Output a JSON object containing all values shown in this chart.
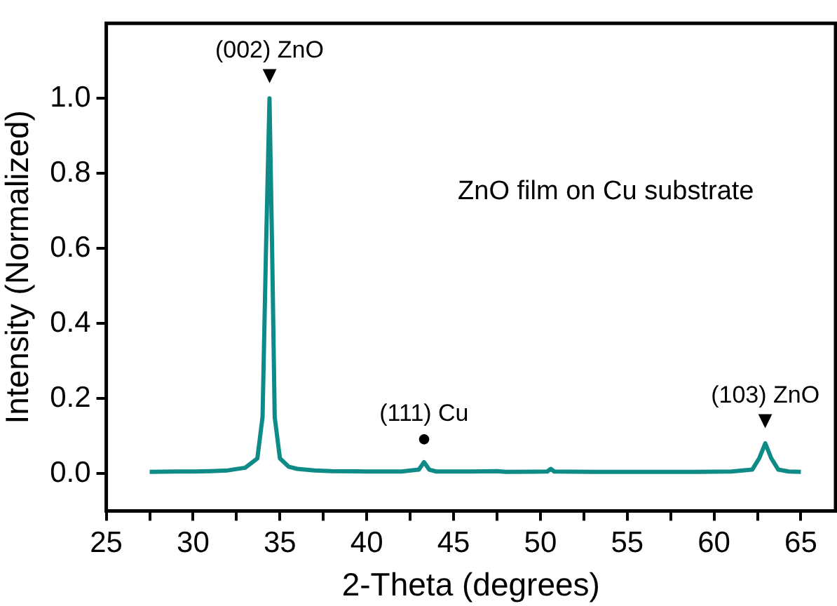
{
  "chart_data": {
    "type": "line",
    "xlabel": "2-Theta (degrees)",
    "ylabel": "Intensity (Normalized)",
    "color": "#0e8a87",
    "marker": "none",
    "x": [
      27.5,
      29,
      30,
      31,
      32,
      33,
      33.7,
      34.0,
      34.2,
      34.4,
      34.55,
      34.7,
      35.0,
      35.5,
      36,
      37,
      38,
      40,
      42,
      43.0,
      43.3,
      43.6,
      44,
      46,
      47.5,
      48,
      50.4,
      50.6,
      50.8,
      53,
      56,
      59,
      61,
      62.2,
      62.6,
      62.95,
      63.3,
      63.7,
      64.3,
      65
    ],
    "values": [
      0.004,
      0.005,
      0.005,
      0.006,
      0.008,
      0.015,
      0.04,
      0.15,
      0.6,
      1.0,
      0.6,
      0.15,
      0.04,
      0.018,
      0.012,
      0.008,
      0.006,
      0.005,
      0.005,
      0.01,
      0.03,
      0.01,
      0.005,
      0.005,
      0.006,
      0.004,
      0.005,
      0.012,
      0.005,
      0.004,
      0.004,
      0.004,
      0.005,
      0.01,
      0.04,
      0.08,
      0.04,
      0.01,
      0.005,
      0.004
    ],
    "xlim": [
      25,
      67
    ],
    "ylim": [
      -0.1,
      1.2
    ],
    "xticks": [
      25,
      {
        "value": 27.5,
        "label": null
      },
      30,
      {
        "value": 32.5,
        "label": null
      },
      35,
      {
        "value": 37.5,
        "label": null
      },
      40,
      {
        "value": 42.5,
        "label": null
      },
      45,
      {
        "value": 47.5,
        "label": null
      },
      50,
      {
        "value": 52.5,
        "label": null
      },
      55,
      {
        "value": 57.5,
        "label": null
      },
      60,
      {
        "value": 62.5,
        "label": null
      },
      65
    ],
    "yticks": [
      {
        "value": 0,
        "label": "0.0"
      },
      {
        "value": 0.2,
        "label": "0.2"
      },
      {
        "value": 0.4,
        "label": "0.4"
      },
      {
        "value": 0.6,
        "label": "0.6"
      },
      {
        "value": 0.8,
        "label": "0.8"
      },
      {
        "value": 1,
        "label": "1.0"
      }
    ],
    "annotations": [
      {
        "text": "▼",
        "x": 34.4,
        "y": 1.0
      },
      {
        "text": "(002) ZnO",
        "x": 34.4,
        "y": 1.0
      },
      {
        "text": "●",
        "x": 43.3,
        "y": 0.03
      },
      {
        "text": "(111) Cu",
        "x": 43.3,
        "y": 0.03
      },
      {
        "text": "▼",
        "x": 62.95,
        "y": 0.08
      },
      {
        "text": "(103) ZnO",
        "x": 62.95,
        "y": 0.08
      },
      "ZnO film on Cu substrate"
    ]
  }
}
